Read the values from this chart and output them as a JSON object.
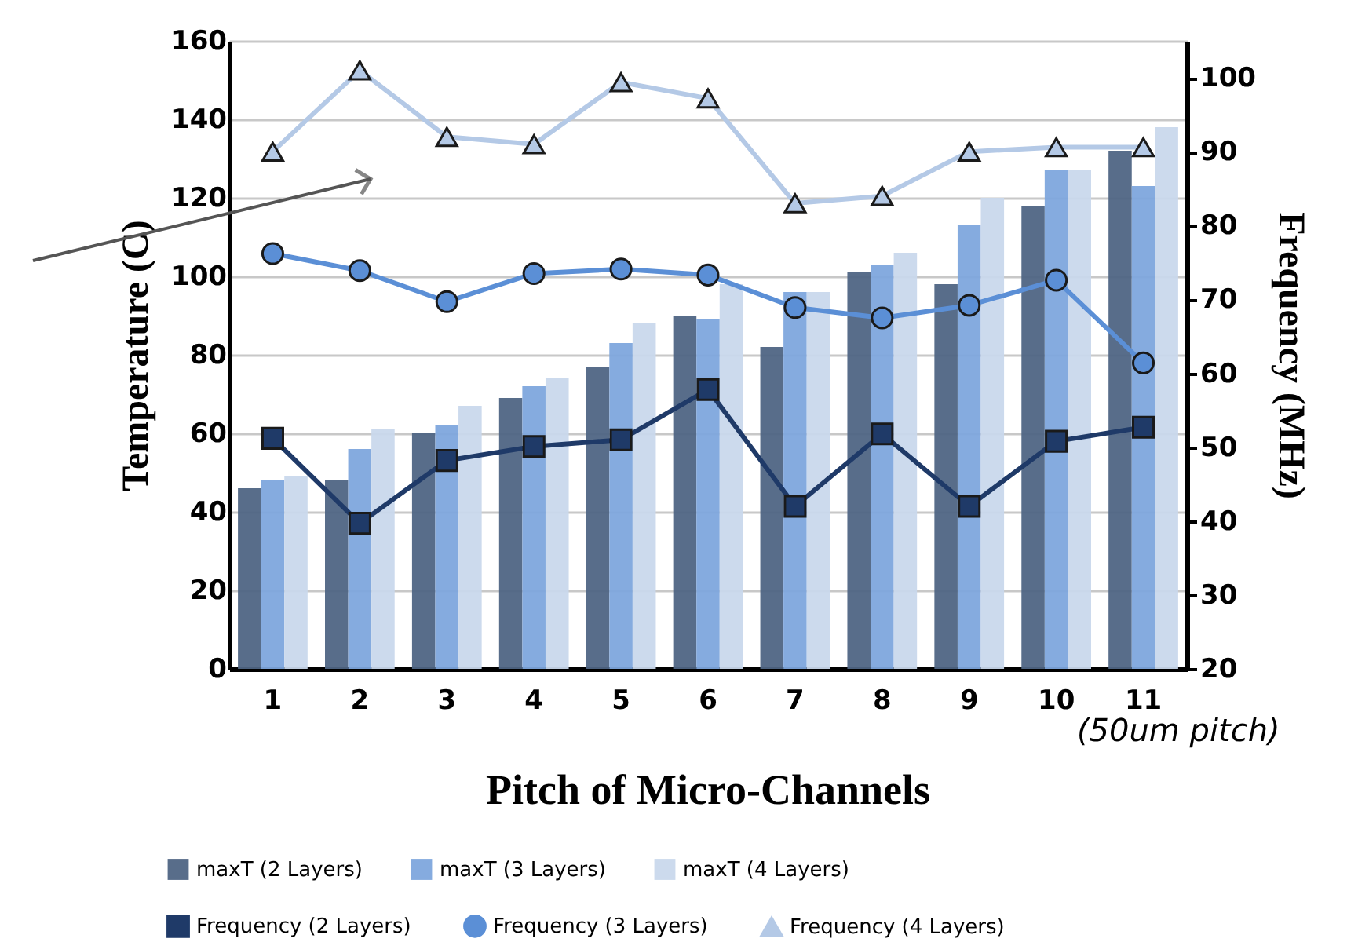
{
  "chart_data": {
    "type": "bar",
    "xlabel": "Pitch of Micro-Channels",
    "ylabel": "Temperature (C)",
    "y2label": "Frequency (MHz)",
    "categories": [
      "1",
      "2",
      "3",
      "4",
      "5",
      "6",
      "7",
      "8",
      "9",
      "10",
      "11"
    ],
    "ylim": [
      0,
      160
    ],
    "yticks": [
      0,
      20,
      40,
      60,
      80,
      100,
      120,
      140,
      160
    ],
    "y2lim": [
      20,
      105
    ],
    "y2ticks": [
      20,
      30,
      40,
      50,
      60,
      70,
      80,
      90,
      100
    ],
    "grid": "y",
    "legend": "bottom",
    "annotations": [
      "(50um pitch)"
    ],
    "series": [
      {
        "name": "maxT (2 Layers)",
        "color": "#4f6584",
        "values": [
          46,
          48,
          60,
          69,
          77,
          90,
          82,
          101,
          98,
          118,
          132
        ]
      },
      {
        "name": "maxT (3 Layers)",
        "color": "#7ea7dd",
        "values": [
          48,
          56,
          62,
          72,
          83,
          89,
          96,
          103,
          113,
          127,
          123
        ]
      },
      {
        "name": "maxT (4 Layers)",
        "color": "#c9d8ec",
        "values": [
          49,
          61,
          67,
          74,
          88,
          98,
          96,
          106,
          120,
          127,
          138
        ]
      },
      {
        "name": "Frequency (2 Layers)",
        "type": "line",
        "axis": "y2",
        "marker": "square",
        "color": "#1f3a68",
        "values": [
          51.2,
          39.7,
          48.2,
          50.1,
          51,
          57.8,
          42,
          51.8,
          42,
          50.8,
          52.7
        ]
      },
      {
        "name": "Frequency (3 Layers)",
        "type": "line",
        "axis": "y2",
        "marker": "circle",
        "color": "#5b8fd6",
        "values": [
          76.2,
          73.9,
          69.7,
          73.5,
          74.1,
          73.3,
          68.9,
          67.5,
          69.2,
          72.6,
          61.4
        ]
      },
      {
        "name": "Frequency (4 Layers)",
        "type": "line",
        "axis": "y2",
        "marker": "triangle",
        "color": "#b4c9e6",
        "values": [
          90,
          101,
          92,
          91,
          99.4,
          97.2,
          83,
          84,
          90,
          90.6,
          90.6
        ]
      }
    ]
  }
}
